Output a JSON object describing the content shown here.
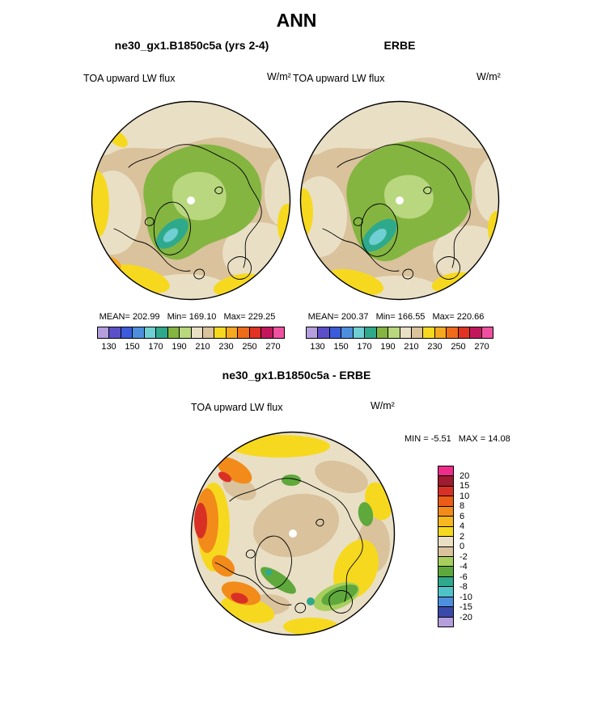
{
  "title": {
    "text": "ANN"
  },
  "panels": {
    "model": {
      "subtitle": "ne30_gx1.B1850c5a (yrs 2-4)",
      "field_label": "TOA upward LW flux",
      "units": "W/m²",
      "stats": {
        "mean_label": "MEAN=",
        "mean": "202.99",
        "min_label": "Min=",
        "min": "169.10",
        "max_label": "Max=",
        "max": "229.25"
      }
    },
    "obs": {
      "subtitle": "ERBE",
      "field_label": "TOA upward LW flux",
      "units": "W/m²",
      "stats": {
        "mean_label": "MEAN=",
        "mean": "200.37",
        "min_label": "Min=",
        "min": "166.55",
        "max_label": "Max=",
        "max": "220.66"
      }
    },
    "diff": {
      "subtitle": "ne30_gx1.B1850c5a - ERBE",
      "field_label": "TOA upward LW flux",
      "units": "W/m²",
      "stats": {
        "min_label": "MIN =",
        "min": "-5.51",
        "max_label": "MAX =",
        "max": "14.08"
      }
    }
  },
  "colorbars": {
    "main": {
      "orientation": "horizontal",
      "colors": [
        "#b49fdc",
        "#5b50c8",
        "#3b5bdb",
        "#4d8fdd",
        "#6fcfd2",
        "#2fa98c",
        "#84b541",
        "#b9d77e",
        "#e9dfc5",
        "#d9c29c",
        "#f6d91f",
        "#f6a81e",
        "#ef6c1a",
        "#e03324",
        "#c2185b",
        "#f050a0"
      ],
      "tick_labels": [
        "130",
        "150",
        "170",
        "190",
        "210",
        "230",
        "250",
        "270"
      ]
    },
    "diff": {
      "orientation": "vertical",
      "colors": [
        "#ee2d8a",
        "#9e1b30",
        "#d93025",
        "#ec5c16",
        "#f28b1a",
        "#f6b81e",
        "#f6d91f",
        "#e9dfc5",
        "#d9c29c",
        "#a8cf5e",
        "#5fa83c",
        "#2fa98c",
        "#4fc3c7",
        "#4d8fdd",
        "#3949ab",
        "#b49fdc"
      ],
      "tick_labels": [
        "20",
        "15",
        "10",
        "8",
        "6",
        "4",
        "2",
        "0",
        "-2",
        "-4",
        "-6",
        "-8",
        "-10",
        "-15",
        "-20"
      ]
    }
  },
  "chart_data": [
    {
      "type": "heatmap",
      "panel": "top-left",
      "title": "ne30_gx1.B1850c5a (yrs 2-4)",
      "season": "ANN",
      "variable": "TOA upward LW flux",
      "units": "W/m²",
      "projection": "north polar stereographic",
      "stats": {
        "mean": 202.99,
        "min": 169.1,
        "max": 229.25
      },
      "contour_levels": [
        130,
        140,
        150,
        160,
        170,
        180,
        190,
        200,
        210,
        220,
        230,
        240,
        250,
        260,
        270
      ],
      "tick_values": [
        130,
        150,
        170,
        190,
        210,
        230,
        250,
        270
      ],
      "legend_position": "bottom"
    },
    {
      "type": "heatmap",
      "panel": "top-right",
      "title": "ERBE",
      "season": "ANN",
      "variable": "TOA upward LW flux",
      "units": "W/m²",
      "projection": "north polar stereographic",
      "stats": {
        "mean": 200.37,
        "min": 166.55,
        "max": 220.66
      },
      "contour_levels": [
        130,
        140,
        150,
        160,
        170,
        180,
        190,
        200,
        210,
        220,
        230,
        240,
        250,
        260,
        270
      ],
      "tick_values": [
        130,
        150,
        170,
        190,
        210,
        230,
        250,
        270
      ],
      "legend_position": "bottom"
    },
    {
      "type": "heatmap",
      "panel": "bottom",
      "title": "ne30_gx1.B1850c5a - ERBE",
      "season": "ANN",
      "variable": "TOA upward LW flux",
      "units": "W/m²",
      "projection": "north polar stereographic",
      "stats": {
        "min": -5.51,
        "max": 14.08
      },
      "contour_levels": [
        -20,
        -15,
        -10,
        -8,
        -6,
        -4,
        -2,
        0,
        2,
        4,
        6,
        8,
        10,
        15,
        20
      ],
      "legend_position": "right"
    }
  ]
}
